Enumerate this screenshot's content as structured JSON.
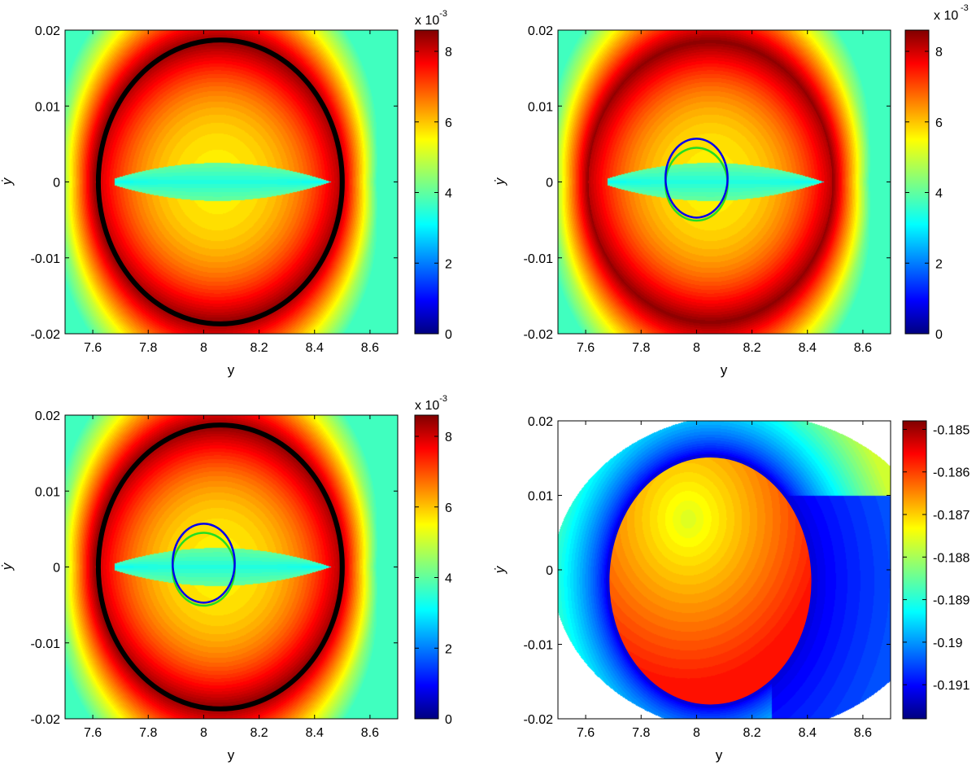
{
  "chart_data": [
    {
      "type": "heatmap",
      "panel": "top-left",
      "xlabel": "y",
      "ylabel": "ẏ",
      "xlim": [
        7.5,
        8.7
      ],
      "ylim": [
        -0.02,
        0.02
      ],
      "x_ticks": [
        7.6,
        7.8,
        8,
        8.2,
        8.4,
        8.6
      ],
      "x_tick_labels": [
        "7.6",
        "7.8",
        "8",
        "8.2",
        "8.4",
        "8.6"
      ],
      "y_ticks": [
        0.02,
        0.01,
        0,
        -0.01,
        -0.02
      ],
      "y_tick_labels": [
        "0.02",
        "0.01",
        "0",
        "-0.01",
        "-0.02"
      ],
      "colorbar": {
        "range": [
          0,
          8.6
        ],
        "ticks": [
          0,
          2,
          4,
          6,
          8
        ],
        "tick_labels": [
          "0",
          "2",
          "4",
          "6",
          "8"
        ],
        "multiplier_label": "x 10",
        "multiplier_exponent": "-3",
        "colormap": "jet"
      },
      "field": {
        "center": [
          8.05,
          0.0
        ],
        "semi_axes": [
          0.44,
          0.0185
        ],
        "x_points": [
          7.66,
          8.53
        ],
        "ring_peak": 8.5,
        "field_at_center": 5.5,
        "field_outside": 5.0,
        "trough": {
          "x_range": [
            7.68,
            8.5
          ],
          "half_height": 0.0025,
          "min": 3.5
        }
      },
      "curves": [
        {
          "name": "",
          "color": "#000000",
          "center": [
            8.06,
            0.0
          ],
          "semi_axes": [
            0.44,
            0.0187
          ],
          "width": 6
        }
      ]
    },
    {
      "type": "heatmap",
      "panel": "top-right",
      "xlabel": "y",
      "ylabel": "ẏ",
      "xlim": [
        7.5,
        8.7
      ],
      "ylim": [
        -0.02,
        0.02
      ],
      "x_ticks": [
        7.6,
        7.8,
        8,
        8.2,
        8.4,
        8.6
      ],
      "x_tick_labels": [
        "7.6",
        "7.8",
        "8",
        "8.2",
        "8.4",
        "8.6"
      ],
      "y_ticks": [
        0.02,
        0.01,
        0,
        -0.01,
        -0.02
      ],
      "y_tick_labels": [
        "0.02",
        "0.01",
        "0",
        "-0.01",
        "-0.02"
      ],
      "colorbar": {
        "range": [
          0,
          8.6
        ],
        "ticks": [
          0,
          2,
          4,
          6,
          8
        ],
        "tick_labels": [
          "0",
          "2",
          "4",
          "6",
          "8"
        ],
        "multiplier_label": "x 10",
        "multiplier_exponent": "-3",
        "colormap": "jet"
      },
      "field": {
        "center": [
          8.05,
          0.0
        ],
        "semi_axes": [
          0.44,
          0.0185
        ],
        "x_points": [
          7.66,
          8.53
        ],
        "ring_peak": 8.5,
        "field_at_center": 5.5,
        "field_outside": 5.0,
        "trough": {
          "x_range": [
            7.68,
            8.5
          ],
          "half_height": 0.0025,
          "min": 3.5
        }
      },
      "curves": [
        {
          "name": "",
          "color": "#22dd22",
          "center": [
            8.0,
            -0.0003
          ],
          "semi_axes": [
            0.112,
            0.0048
          ],
          "width": 2.5
        },
        {
          "name": "",
          "color": "#0000ee",
          "center": [
            8.0,
            0.0005
          ],
          "semi_axes": [
            0.112,
            0.0052
          ],
          "width": 2.5
        }
      ]
    },
    {
      "type": "heatmap",
      "panel": "bottom-left",
      "xlabel": "y",
      "ylabel": "ẏ",
      "xlim": [
        7.5,
        8.7
      ],
      "ylim": [
        -0.02,
        0.02
      ],
      "x_ticks": [
        7.6,
        7.8,
        8,
        8.2,
        8.4,
        8.6
      ],
      "x_tick_labels": [
        "7.6",
        "7.8",
        "8",
        "8.2",
        "8.4",
        "8.6"
      ],
      "y_ticks": [
        0.02,
        0.01,
        0,
        -0.01,
        -0.02
      ],
      "y_tick_labels": [
        "0.02",
        "0.01",
        "0",
        "-0.01",
        "-0.02"
      ],
      "colorbar": {
        "range": [
          0,
          8.6
        ],
        "ticks": [
          0,
          2,
          4,
          6,
          8
        ],
        "tick_labels": [
          "0",
          "2",
          "4",
          "6",
          "8"
        ],
        "multiplier_label": "x 10",
        "multiplier_exponent": "-3",
        "colormap": "jet"
      },
      "field": {
        "center": [
          8.05,
          0.0
        ],
        "semi_axes": [
          0.44,
          0.0185
        ],
        "x_points": [
          7.66,
          8.53
        ],
        "ring_peak": 8.5,
        "field_at_center": 5.5,
        "field_outside": 5.0,
        "trough": {
          "x_range": [
            7.68,
            8.5
          ],
          "half_height": 0.0025,
          "min": 3.5
        }
      },
      "curves": [
        {
          "name": "",
          "color": "#000000",
          "center": [
            8.06,
            0.0
          ],
          "semi_axes": [
            0.44,
            0.0187
          ],
          "width": 6
        },
        {
          "name": "",
          "color": "#22dd22",
          "center": [
            8.0,
            -0.0003
          ],
          "semi_axes": [
            0.112,
            0.0048
          ],
          "width": 2.5
        },
        {
          "name": "",
          "color": "#0000ee",
          "center": [
            8.0,
            0.0005
          ],
          "semi_axes": [
            0.112,
            0.0052
          ],
          "width": 2.5
        }
      ]
    },
    {
      "type": "heatmap",
      "panel": "bottom-right",
      "xlabel": "y",
      "ylabel": "ẏ",
      "xlim": [
        7.5,
        8.7
      ],
      "ylim": [
        -0.02,
        0.02
      ],
      "x_ticks": [
        7.6,
        7.8,
        8,
        8.2,
        8.4,
        8.6
      ],
      "x_tick_labels": [
        "7.6",
        "7.8",
        "8",
        "8.2",
        "8.4",
        "8.6"
      ],
      "y_ticks": [
        0.02,
        0.01,
        0,
        -0.01,
        -0.02
      ],
      "y_tick_labels": [
        "0.02",
        "0.01",
        "0",
        "-0.01",
        "-0.02"
      ],
      "colorbar": {
        "range": [
          -0.1918,
          -0.1848
        ],
        "ticks": [
          -0.185,
          -0.186,
          -0.187,
          -0.188,
          -0.189,
          -0.19,
          -0.191
        ],
        "tick_labels": [
          "-0.185",
          "-0.186",
          "-0.187",
          "-0.188",
          "-0.189",
          "-0.19",
          "-0.191"
        ],
        "colormap": "jet"
      },
      "field": {
        "ellipse_center": [
          8.05,
          -0.0015
        ],
        "ellipse_semi_axes": [
          0.37,
          0.0168
        ],
        "inside_max": {
          "at": [
            7.97,
            0.0068
          ],
          "value": -0.1877
        },
        "inside_edge_value": -0.1858,
        "outside_far_value": -0.1877,
        "outside_near_value": -0.1912,
        "domain_boundary": {
          "center": [
            8.18,
            -0.0005
          ],
          "semi_axes": [
            0.7,
            0.0215
          ]
        }
      },
      "curves": []
    }
  ]
}
